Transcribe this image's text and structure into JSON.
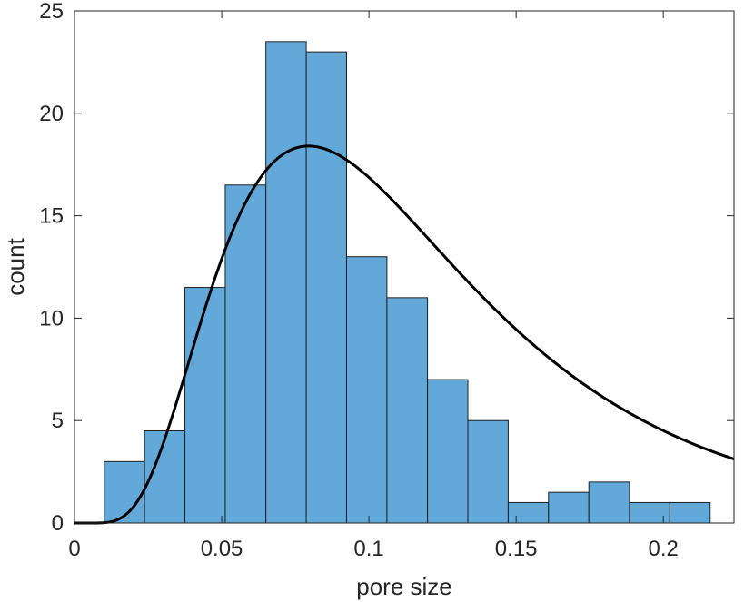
{
  "chart_data": {
    "type": "bar",
    "subtype": "histogram-with-fit",
    "title": "",
    "xlabel": "pore size",
    "ylabel": "count",
    "xlim": [
      0,
      0.224
    ],
    "ylim": [
      0,
      25
    ],
    "xticks": [
      0,
      0.05,
      0.1,
      0.15,
      0.2
    ],
    "xtick_labels": [
      "0",
      "0.05",
      "0.1",
      "0.15",
      "0.2"
    ],
    "yticks": [
      0,
      5,
      10,
      15,
      20,
      25
    ],
    "ytick_labels": [
      "0",
      "5",
      "10",
      "15",
      "20",
      "25"
    ],
    "bin_edges": [
      0.0101,
      0.0238,
      0.0375,
      0.0512,
      0.065,
      0.0787,
      0.0924,
      0.1061,
      0.1199,
      0.1336,
      0.1473,
      0.161,
      0.1747,
      0.1885,
      0.2022,
      0.2159
    ],
    "values": [
      3,
      4.5,
      11.5,
      16.5,
      23.5,
      23,
      13,
      11,
      7,
      5,
      1,
      1.5,
      2,
      1,
      1
    ],
    "bar_color": "#62A8D9",
    "bar_edge_color": "#1f1f1f",
    "fit_curve": {
      "type": "lognormal",
      "peak_x": 0.0795,
      "peak_y": 18.4,
      "color": "#000000"
    },
    "grid": false,
    "box": true
  }
}
